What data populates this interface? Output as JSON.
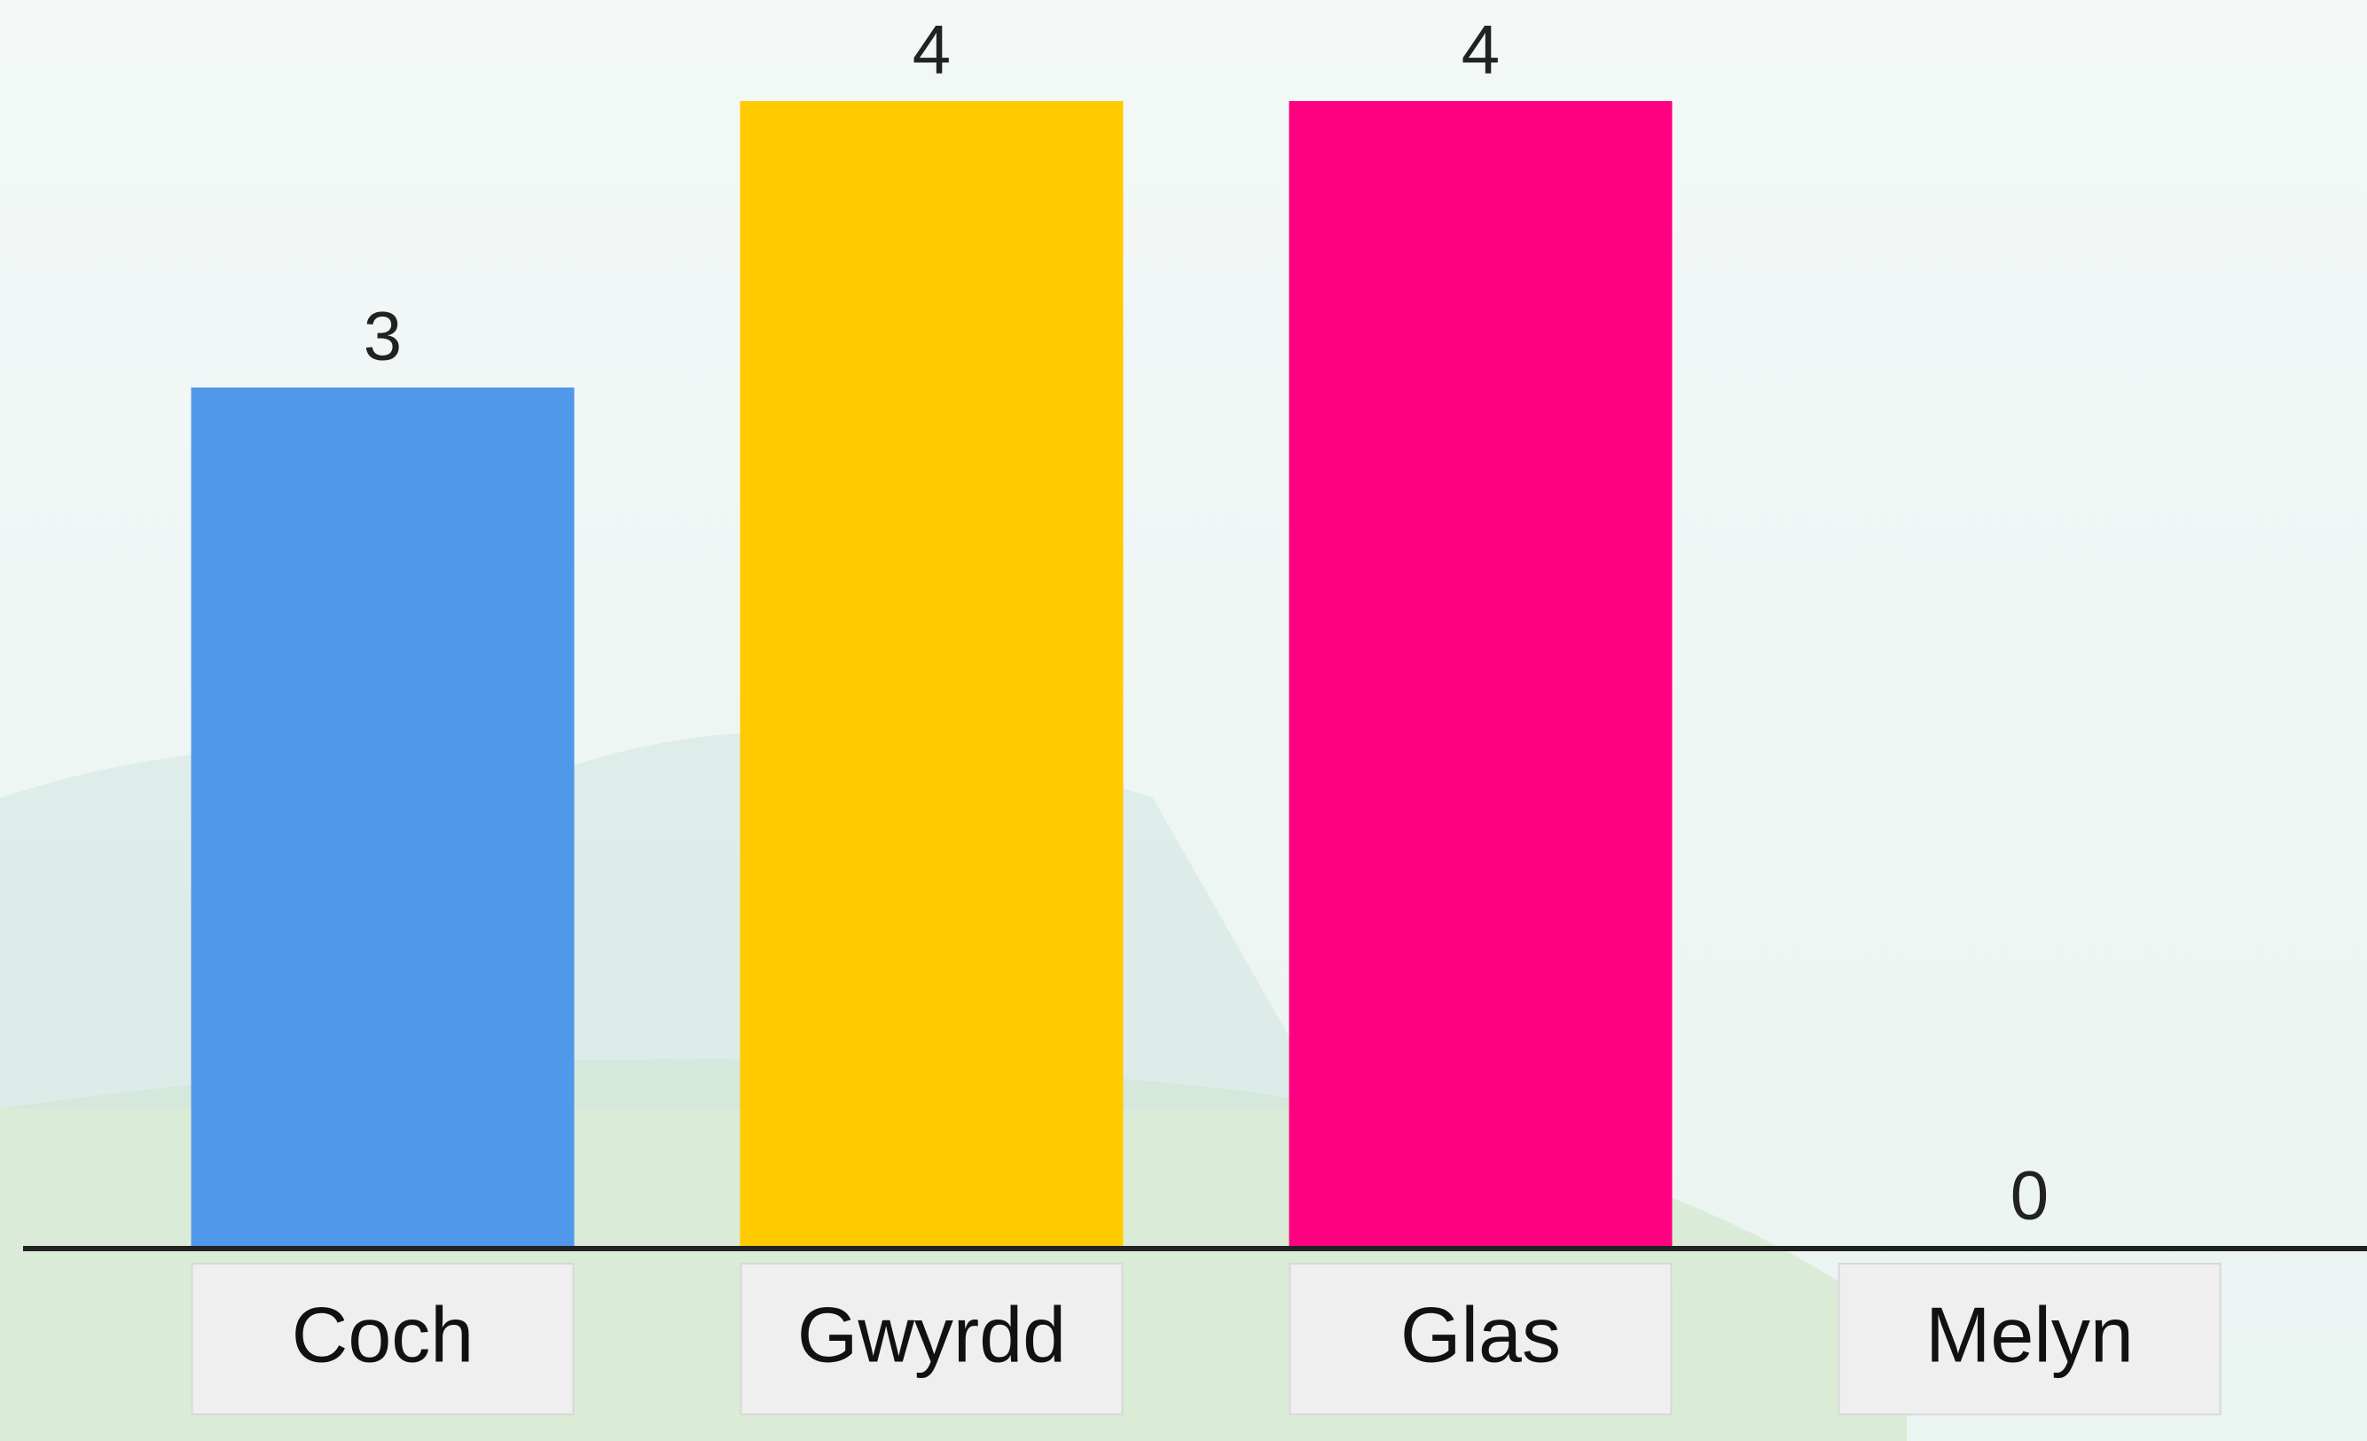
{
  "chart_data": {
    "type": "bar",
    "categories": [
      "Coch",
      "Gwyrdd",
      "Glas",
      "Melyn"
    ],
    "values": [
      3,
      4,
      4,
      0
    ],
    "colors": [
      "#4f98ea",
      "#ffca00",
      "#ff0080",
      null
    ],
    "ylim": [
      0,
      4
    ]
  }
}
